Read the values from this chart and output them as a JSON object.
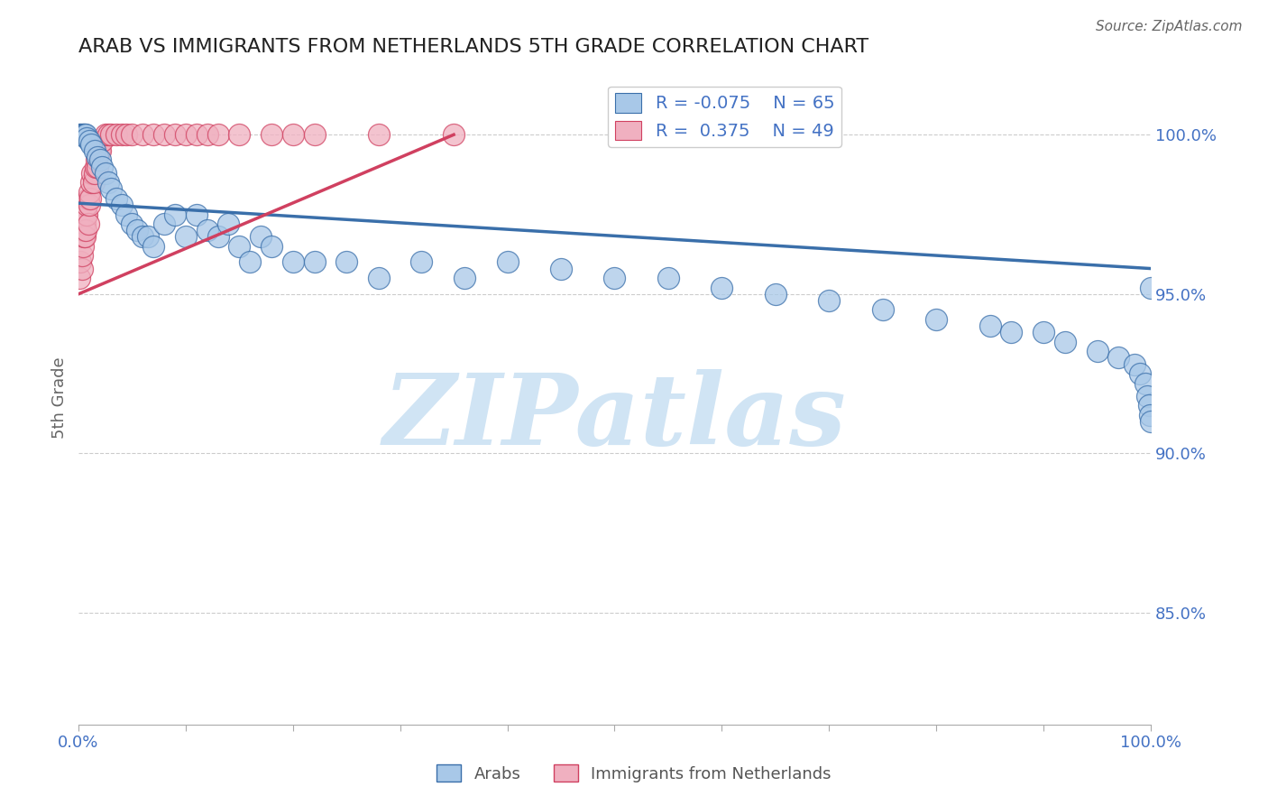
{
  "title": "ARAB VS IMMIGRANTS FROM NETHERLANDS 5TH GRADE CORRELATION CHART",
  "source": "Source: ZipAtlas.com",
  "ylabel": "5th Grade",
  "xlim": [
    0,
    1
  ],
  "ylim": [
    0.815,
    1.02
  ],
  "yticks": [
    0.85,
    0.9,
    0.95,
    1.0
  ],
  "ytick_labels": [
    "85.0%",
    "90.0%",
    "95.0%",
    "100.0%"
  ],
  "xtick_pos": [
    0.0,
    0.1,
    0.2,
    0.3,
    0.4,
    0.5,
    0.6,
    0.7,
    0.8,
    0.9,
    1.0
  ],
  "xtick_labels": [
    "0.0%",
    "",
    "",
    "",
    "",
    "",
    "",
    "",
    "",
    "",
    "100.0%"
  ],
  "legend_r_blue": "-0.075",
  "legend_n_blue": "65",
  "legend_r_pink": "0.375",
  "legend_n_pink": "49",
  "blue_color": "#a8c8e8",
  "pink_color": "#f0b0c0",
  "trend_blue": "#3a6faa",
  "trend_pink": "#d04060",
  "watermark": "ZIPatlas",
  "watermark_color": "#d0e4f4",
  "blue_scatter_x": [
    0.001,
    0.002,
    0.003,
    0.004,
    0.005,
    0.006,
    0.007,
    0.008,
    0.01,
    0.012,
    0.015,
    0.018,
    0.02,
    0.022,
    0.025,
    0.028,
    0.03,
    0.035,
    0.04,
    0.045,
    0.05,
    0.055,
    0.06,
    0.065,
    0.07,
    0.08,
    0.09,
    0.1,
    0.11,
    0.12,
    0.13,
    0.14,
    0.15,
    0.16,
    0.17,
    0.18,
    0.2,
    0.22,
    0.25,
    0.28,
    0.32,
    0.36,
    0.4,
    0.45,
    0.5,
    0.55,
    0.6,
    0.65,
    0.7,
    0.75,
    0.8,
    0.85,
    0.87,
    0.9,
    0.92,
    0.95,
    0.97,
    0.985,
    0.99,
    0.995,
    0.997,
    0.998,
    0.999,
    1.0,
    1.0
  ],
  "blue_scatter_y": [
    1.0,
    1.0,
    1.0,
    1.0,
    1.0,
    1.0,
    1.0,
    0.999,
    0.998,
    0.997,
    0.995,
    0.993,
    0.992,
    0.99,
    0.988,
    0.985,
    0.983,
    0.98,
    0.978,
    0.975,
    0.972,
    0.97,
    0.968,
    0.968,
    0.965,
    0.972,
    0.975,
    0.968,
    0.975,
    0.97,
    0.968,
    0.972,
    0.965,
    0.96,
    0.968,
    0.965,
    0.96,
    0.96,
    0.96,
    0.955,
    0.96,
    0.955,
    0.96,
    0.958,
    0.955,
    0.955,
    0.952,
    0.95,
    0.948,
    0.945,
    0.942,
    0.94,
    0.938,
    0.938,
    0.935,
    0.932,
    0.93,
    0.928,
    0.925,
    0.922,
    0.918,
    0.915,
    0.912,
    0.91,
    0.952
  ],
  "pink_scatter_x": [
    0.001,
    0.002,
    0.003,
    0.003,
    0.004,
    0.005,
    0.005,
    0.006,
    0.006,
    0.007,
    0.007,
    0.008,
    0.008,
    0.009,
    0.009,
    0.01,
    0.01,
    0.011,
    0.012,
    0.013,
    0.014,
    0.015,
    0.016,
    0.017,
    0.018,
    0.019,
    0.02,
    0.022,
    0.025,
    0.028,
    0.03,
    0.035,
    0.04,
    0.045,
    0.05,
    0.06,
    0.07,
    0.08,
    0.09,
    0.1,
    0.11,
    0.12,
    0.13,
    0.15,
    0.18,
    0.2,
    0.22,
    0.28,
    0.35
  ],
  "pink_scatter_y": [
    0.955,
    0.96,
    0.958,
    0.962,
    0.965,
    0.968,
    0.97,
    0.972,
    0.968,
    0.975,
    0.97,
    0.975,
    0.978,
    0.972,
    0.98,
    0.978,
    0.982,
    0.98,
    0.985,
    0.988,
    0.985,
    0.988,
    0.99,
    0.992,
    0.99,
    0.995,
    0.995,
    0.998,
    1.0,
    1.0,
    1.0,
    1.0,
    1.0,
    1.0,
    1.0,
    1.0,
    1.0,
    1.0,
    1.0,
    1.0,
    1.0,
    1.0,
    1.0,
    1.0,
    1.0,
    1.0,
    1.0,
    1.0,
    1.0
  ],
  "blue_trend_x": [
    0.0,
    1.0
  ],
  "blue_trend_y": [
    0.9785,
    0.958
  ],
  "pink_trend_x": [
    0.0,
    0.35
  ],
  "pink_trend_y": [
    0.95,
    1.0
  ]
}
